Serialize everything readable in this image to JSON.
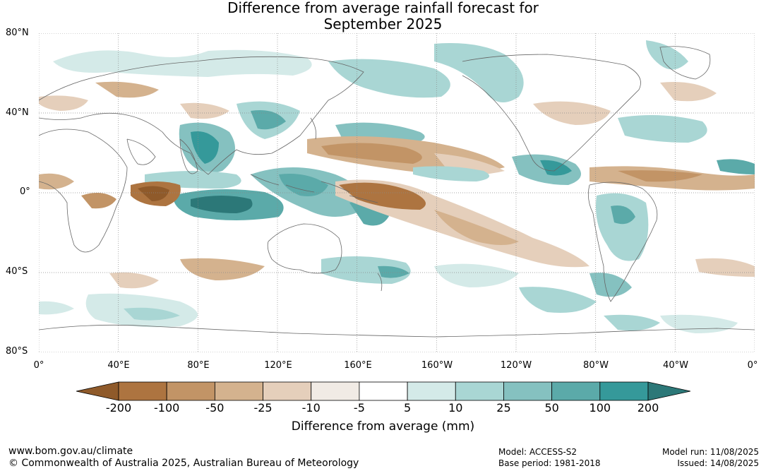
{
  "title_line1": "Difference from average rainfall forecast for",
  "title_line2": "September 2025",
  "lat_labels": [
    "80°N",
    "40°N",
    "0°",
    "40°S",
    "80°S"
  ],
  "lon_labels": [
    "0°",
    "40°E",
    "80°E",
    "120°E",
    "160°E",
    "160°W",
    "120°W",
    "80°W",
    "40°W",
    "0°"
  ],
  "colorbar": {
    "title": "Difference from average (mm)",
    "ticks": [
      "-200",
      "-100",
      "-50",
      "-25",
      "-10",
      "-5",
      "5",
      "10",
      "25",
      "50",
      "100",
      "200"
    ],
    "colors": [
      "#8f5a2a",
      "#ad7440",
      "#c29466",
      "#d4b28e",
      "#e5cfbb",
      "#f1ebe5",
      "#ffffff",
      "#d4eae8",
      "#a9d6d4",
      "#85c1c0",
      "#5baaa9",
      "#35999a",
      "#2c7878"
    ]
  },
  "footer": {
    "website": "www.bom.gov.au/climate",
    "copyright": "© Commonwealth of Australia 2025, Australian Bureau of Meteorology",
    "model": "Model: ACCESS-S2",
    "base_period": "Base period: 1981-2018",
    "model_run": "Model run: 11/08/2025",
    "issued": "Issued: 14/08/2025"
  }
}
